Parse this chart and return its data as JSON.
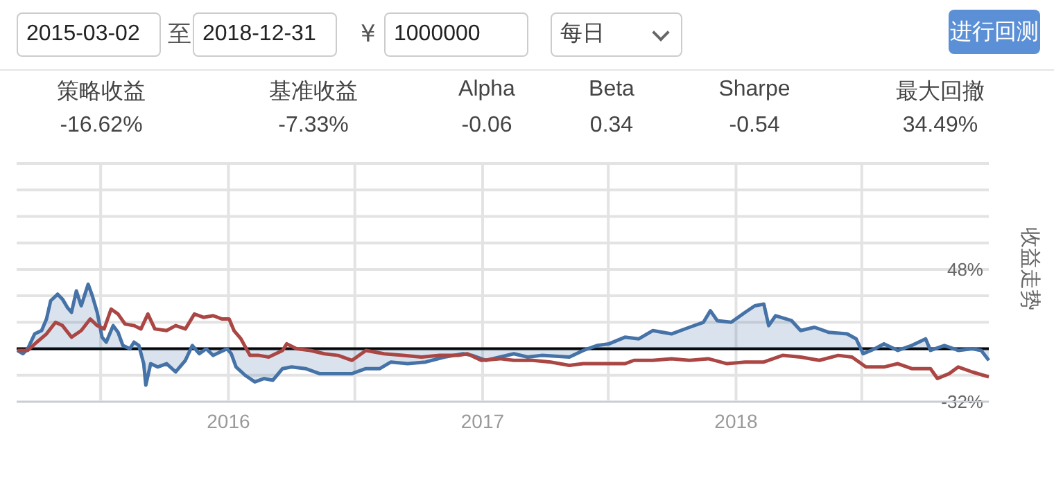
{
  "chart_data": [
    {
      "type": "other",
      "annotations": [
        "2015-03-02",
        "至",
        "2018-12-31",
        "¥",
        "1000000",
        "每日",
        "进行回测",
        "策略收益",
        "-16.62%",
        "基准收益",
        "-7.33%",
        "Alpha",
        "-0.06",
        "Beta",
        "0.34",
        "Sharpe",
        "-0.54",
        "最大回撤",
        "34.49%"
      ]
    },
    {
      "type": "line",
      "ylabel": "收益走势",
      "xlim": [
        "2015-03-02",
        "2018-12-31"
      ],
      "ylim": [
        -32,
        112
      ],
      "xticks": [
        {
          "value": "2015-07-01",
          "label": null
        },
        {
          "value": "2016-01-01",
          "label": "2016"
        },
        {
          "value": "2016-07-01",
          "label": null
        },
        {
          "value": "2017-01-01",
          "label": "2017"
        },
        {
          "value": "2017-07-01",
          "label": null
        },
        {
          "value": "2018-01-01",
          "label": "2018"
        },
        {
          "value": "2018-07-01",
          "label": null
        }
      ],
      "yticks": [
        {
          "value": -32,
          "label": "-32%"
        },
        {
          "value": -16,
          "label": null
        },
        {
          "value": 0,
          "label": null
        },
        {
          "value": 16,
          "label": null
        },
        {
          "value": 32,
          "label": null
        },
        {
          "value": 48,
          "label": "48%"
        },
        {
          "value": 64,
          "label": null
        },
        {
          "value": 80,
          "label": null
        },
        {
          "value": 96,
          "label": null
        },
        {
          "value": 112,
          "label": null
        }
      ],
      "grid": true,
      "ref_lines": [
        {
          "axis": "y",
          "value": 0,
          "color": "#000000"
        }
      ],
      "series": [
        {
          "type": "area",
          "color": "#4572a7",
          "x": [
            "2015-03-03",
            "2015-03-11",
            "2015-03-18",
            "2015-03-28",
            "2015-04-07",
            "2015-04-14",
            "2015-04-20",
            "2015-04-30",
            "2015-05-07",
            "2015-05-14",
            "2015-05-20",
            "2015-05-27",
            "2015-06-03",
            "2015-06-13",
            "2015-06-19",
            "2015-06-26",
            "2015-07-03",
            "2015-07-09",
            "2015-07-19",
            "2015-07-26",
            "2015-08-02",
            "2015-08-12",
            "2015-08-18",
            "2015-08-25",
            "2015-09-01",
            "2015-09-04",
            "2015-09-11",
            "2015-09-21",
            "2015-10-04",
            "2015-10-17",
            "2015-10-31",
            "2015-11-10",
            "2015-11-20",
            "2015-11-30",
            "2015-12-10",
            "2015-12-20",
            "2015-12-30",
            "2016-01-05",
            "2016-01-12",
            "2016-01-25",
            "2016-02-08",
            "2016-02-21",
            "2016-03-05",
            "2016-03-19",
            "2016-04-01",
            "2016-04-21",
            "2016-05-11",
            "2016-05-31",
            "2016-06-27",
            "2016-07-17",
            "2016-08-06",
            "2016-08-22",
            "2016-09-15",
            "2016-10-11",
            "2016-11-07",
            "2016-12-04",
            "2016-12-17",
            "2017-01-06",
            "2017-01-26",
            "2017-02-15",
            "2017-03-07",
            "2017-03-27",
            "2017-05-06",
            "2017-05-26",
            "2017-06-15",
            "2017-07-02",
            "2017-07-25",
            "2017-08-14",
            "2017-09-03",
            "2017-09-30",
            "2017-10-26",
            "2017-11-15",
            "2017-11-25",
            "2017-12-05",
            "2017-12-25",
            "2018-01-14",
            "2018-01-28",
            "2018-02-10",
            "2018-02-17",
            "2018-02-27",
            "2018-03-22",
            "2018-04-04",
            "2018-04-24",
            "2018-05-14",
            "2018-06-10",
            "2018-06-23",
            "2018-07-03",
            "2018-07-20",
            "2018-08-02",
            "2018-08-22",
            "2018-09-11",
            "2018-10-01",
            "2018-10-08",
            "2018-10-28",
            "2018-11-17",
            "2018-12-07",
            "2018-12-20",
            "2018-12-31"
          ],
          "values": [
            -1,
            -3,
            0,
            9,
            11,
            18,
            29,
            33,
            30,
            25,
            22,
            35,
            26,
            39,
            32,
            22,
            7,
            4,
            14,
            10,
            2,
            0,
            4,
            2,
            -9,
            -22,
            -9,
            -11,
            -9,
            -14,
            -7,
            2,
            -3,
            0,
            -4,
            -2,
            0,
            -3,
            -11,
            -16,
            -20,
            -18,
            -19,
            -12,
            -11,
            -12,
            -15,
            -15,
            -15,
            -12,
            -12,
            -8,
            -9,
            -8,
            -5,
            -3,
            -4,
            -7,
            -5,
            -3,
            -5,
            -4,
            -5,
            -1,
            2,
            3,
            7,
            6,
            11,
            9,
            13,
            16,
            23,
            17,
            16,
            22,
            26,
            27,
            14,
            20,
            17,
            11,
            13,
            10,
            9,
            6,
            -3,
            0,
            3,
            -1,
            2,
            6,
            -1,
            2,
            -1,
            0,
            -1,
            -7
          ]
        },
        {
          "type": "line",
          "color": "#aa4643",
          "x": [
            "2015-03-03",
            "2015-03-18",
            "2015-03-31",
            "2015-04-14",
            "2015-04-27",
            "2015-05-07",
            "2015-05-20",
            "2015-06-03",
            "2015-06-16",
            "2015-06-26",
            "2015-07-06",
            "2015-07-16",
            "2015-07-26",
            "2015-08-05",
            "2015-08-18",
            "2015-08-28",
            "2015-09-07",
            "2015-09-17",
            "2015-10-04",
            "2015-10-17",
            "2015-10-31",
            "2015-11-13",
            "2015-11-26",
            "2015-12-10",
            "2015-12-23",
            "2016-01-02",
            "2016-01-09",
            "2016-01-19",
            "2016-02-01",
            "2016-02-14",
            "2016-02-28",
            "2016-03-19",
            "2016-03-25",
            "2016-04-08",
            "2016-04-28",
            "2016-05-18",
            "2016-06-07",
            "2016-06-27",
            "2016-07-17",
            "2016-08-12",
            "2016-09-08",
            "2016-10-05",
            "2016-10-31",
            "2016-11-27",
            "2016-12-10",
            "2016-12-30",
            "2017-01-26",
            "2017-02-15",
            "2017-03-07",
            "2017-03-14",
            "2017-04-09",
            "2017-05-06",
            "2017-05-26",
            "2017-06-28",
            "2017-07-25",
            "2017-08-07",
            "2017-09-03",
            "2017-09-30",
            "2017-10-26",
            "2017-11-22",
            "2017-12-19",
            "2018-01-14",
            "2018-02-10",
            "2018-03-09",
            "2018-04-04",
            "2018-05-01",
            "2018-05-28",
            "2018-06-17",
            "2018-07-07",
            "2018-08-02",
            "2018-08-22",
            "2018-09-11",
            "2018-10-08",
            "2018-10-18",
            "2018-11-04",
            "2018-11-17",
            "2018-12-07",
            "2018-12-31"
          ],
          "values": [
            -1,
            -1,
            4,
            9,
            16,
            14,
            7,
            11,
            18,
            14,
            12,
            24,
            21,
            15,
            14,
            12,
            21,
            12,
            11,
            14,
            12,
            21,
            19,
            20,
            18,
            18,
            11,
            6,
            -4,
            -4,
            -5,
            -1,
            3,
            0,
            -1,
            -3,
            -4,
            -7,
            -1,
            -3,
            -4,
            -5,
            -4,
            -4,
            -3,
            -7,
            -6,
            -7,
            -7,
            -7,
            -8,
            -10,
            -9,
            -9,
            -9,
            -7,
            -7,
            -6,
            -7,
            -6,
            -9,
            -8,
            -8,
            -4,
            -5,
            -7,
            -4,
            -5,
            -11,
            -11,
            -9,
            -12,
            -12,
            -18,
            -15,
            -11,
            -14,
            -17
          ]
        }
      ]
    }
  ]
}
